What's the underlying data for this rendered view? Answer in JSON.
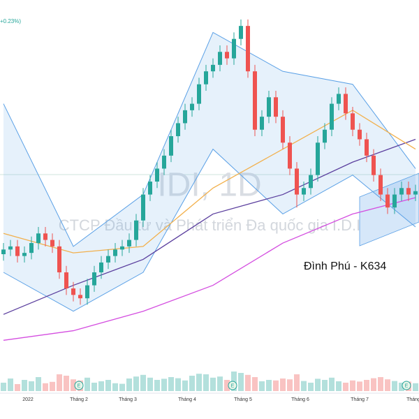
{
  "chart_data": {
    "type": "candlestick",
    "change_label": "+0.23%)",
    "watermark": "IDI, 1D",
    "company": "CTCP Đầu tư và Phát triển Đa quốc gia I.D.I",
    "annotation": "Đình Phú - K634",
    "ylim": [
      9,
      23
    ],
    "vlim": [
      0,
      100
    ],
    "up_color": "#26a69a",
    "down_color": "#ef5350",
    "open": [
      13.2,
      13.38,
      13.5,
      13.13,
      13.25,
      13.63,
      14,
      13.75,
      13.5,
      12.5,
      11.88,
      11.63,
      11.5,
      12,
      12.5,
      12.88,
      13.13,
      13.38,
      13.5,
      13.75,
      14.5,
      15.5,
      16,
      16.5,
      17,
      17.75,
      18.25,
      18.75,
      19,
      19.75,
      20.25,
      20.5,
      21,
      20.75,
      21.5,
      22,
      20.25,
      18,
      18.5,
      19.25,
      18.5,
      17.5,
      16.5,
      15.5,
      15.75,
      16.25,
      17.5,
      18,
      19,
      19.38,
      18.63,
      18,
      17.63,
      17,
      16.25,
      15.5,
      15,
      15.5,
      15.75,
      15.5
    ],
    "high": [
      13.63,
      13.75,
      13.75,
      13.5,
      13.88,
      14.25,
      14.25,
      14,
      13.75,
      12.75,
      12.13,
      11.88,
      12.25,
      12.75,
      13.13,
      13.38,
      13.63,
      13.75,
      14,
      14.75,
      15.75,
      16.25,
      16.75,
      17.25,
      18,
      18.5,
      19,
      19.25,
      20,
      20.5,
      20.75,
      21.25,
      21.25,
      21.75,
      22.25,
      22.25,
      20.5,
      18.75,
      19.5,
      19.5,
      18.75,
      17.75,
      16.75,
      16,
      16.5,
      17.75,
      18.25,
      19.25,
      19.63,
      19.63,
      18.88,
      18.25,
      17.88,
      17.25,
      16.5,
      15.75,
      15.75,
      16,
      16,
      15.88
    ],
    "low": [
      12.95,
      13.13,
      12.88,
      12.88,
      13,
      13.38,
      13.5,
      13.25,
      12.25,
      11.63,
      11.38,
      11.25,
      11.25,
      11.75,
      12.25,
      12.63,
      12.88,
      13.13,
      13.25,
      13.5,
      14.25,
      15.25,
      15.75,
      16.25,
      16.75,
      17.5,
      18,
      18.5,
      18.75,
      19.5,
      20,
      20.25,
      20.5,
      20.5,
      21.25,
      20,
      17.75,
      17.75,
      18.25,
      18.25,
      17.25,
      16.25,
      15,
      15.25,
      15.5,
      16,
      17.25,
      17.75,
      18.75,
      18.38,
      17.75,
      17.38,
      16.75,
      16,
      15.25,
      14.75,
      14.75,
      15.25,
      15.25,
      15.25
    ],
    "close": [
      13.38,
      13.5,
      13.13,
      13.25,
      13.63,
      14,
      13.75,
      13.5,
      12.5,
      11.88,
      11.63,
      11.5,
      12,
      12.5,
      12.88,
      13.13,
      13.38,
      13.5,
      13.75,
      14.5,
      15.5,
      16,
      16.5,
      17,
      17.75,
      18.25,
      18.75,
      19,
      19.75,
      20.25,
      20.5,
      21,
      20.75,
      21.5,
      22,
      20.25,
      18,
      18.5,
      19.25,
      18.5,
      17.5,
      16.5,
      15.5,
      15.75,
      16.25,
      17.5,
      18,
      19,
      19.38,
      18.63,
      18,
      17.63,
      17,
      16.25,
      15.5,
      15,
      15.5,
      15.75,
      15.5,
      15.63
    ],
    "volume": [
      30,
      45,
      25,
      40,
      35,
      50,
      28,
      33,
      60,
      55,
      42,
      38,
      48,
      30,
      35,
      40,
      28,
      26,
      45,
      52,
      58,
      48,
      40,
      44,
      50,
      46,
      38,
      55,
      62,
      60,
      48,
      52,
      40,
      70,
      65,
      58,
      50,
      35,
      40,
      38,
      45,
      42,
      60,
      36,
      30,
      44,
      40,
      48,
      35,
      30,
      38,
      34,
      40,
      46,
      50,
      42,
      36,
      30,
      34,
      28
    ],
    "lines": [
      {
        "color": "#5b3f9e",
        "x": [
          0,
          10,
          20,
          30,
          40,
          50,
          59
        ],
        "values": [
          10.88,
          12,
          13,
          14.75,
          15.5,
          16.75,
          17.63
        ]
      },
      {
        "color": "#d44ee0",
        "x": [
          0,
          10,
          20,
          30,
          40,
          50,
          59
        ],
        "values": [
          9.88,
          10.25,
          11,
          12,
          13.63,
          14.75,
          15.38
        ]
      },
      {
        "color": "#f2b04c",
        "x": [
          0,
          10,
          20,
          30,
          40,
          50,
          59
        ],
        "values": [
          14,
          13.25,
          13.5,
          15.75,
          17.25,
          18.75,
          17.25
        ]
      }
    ],
    "band": {
      "color": "#5aa0e6",
      "x": [
        0,
        10,
        20,
        30,
        40,
        50,
        59
      ],
      "upper": [
        19,
        13.5,
        15.5,
        21.75,
        20.25,
        19.75,
        16.5
      ],
      "lower": [
        12.5,
        11,
        12.5,
        17.25,
        14.75,
        16.25,
        14.25
      ]
    },
    "time_labels": [
      {
        "x": 3.5,
        "label": "2022"
      },
      {
        "x": 10.8,
        "label": "Tháng 2"
      },
      {
        "x": 17.8,
        "label": "Tháng 3"
      },
      {
        "x": 26.3,
        "label": "Tháng 4"
      },
      {
        "x": 34.3,
        "label": "Tháng 5"
      },
      {
        "x": 42.5,
        "label": "Tháng 6"
      },
      {
        "x": 51,
        "label": "Tháng 7"
      },
      {
        "x": 58.7,
        "label": "Tháng"
      }
    ],
    "earnings": [
      {
        "x": 10.8,
        "label": "E"
      },
      {
        "x": 32.8,
        "label": "E"
      },
      {
        "x": 57.7,
        "label": "E"
      }
    ]
  }
}
